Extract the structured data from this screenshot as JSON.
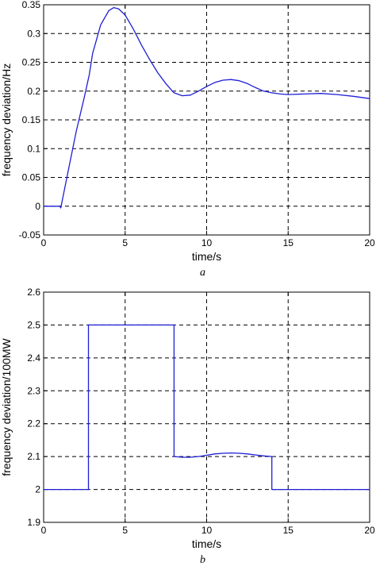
{
  "chart_data": [
    {
      "type": "line",
      "caption": "a",
      "xlabel": "time/s",
      "ylabel": "frequency deviation/Hz",
      "xlim": [
        0,
        20
      ],
      "ylim": [
        -0.05,
        0.35
      ],
      "xticks": [
        "0",
        "5",
        "10",
        "15",
        "20"
      ],
      "yticks": [
        "-0.05",
        "0",
        "0.05",
        "0.1",
        "0.15",
        "0.2",
        "0.25",
        "0.3",
        "0.35"
      ],
      "grid": true,
      "color": "#1f1fd6",
      "series": [
        {
          "x": [
            0,
            1.0,
            1.05,
            1.5,
            2.0,
            2.5,
            2.75,
            2.8,
            3.0,
            3.5,
            4.0,
            4.3,
            4.6,
            5.0,
            5.5,
            6.0,
            6.5,
            7.0,
            7.5,
            7.9,
            8.0,
            8.2,
            8.5,
            9.0,
            9.5,
            10.0,
            10.5,
            11.0,
            11.5,
            12.0,
            12.5,
            13.0,
            13.5,
            14.0,
            14.5,
            15.0,
            16.0,
            17.0,
            18.0,
            19.0,
            20.0
          ],
          "y": [
            0,
            0,
            -0.003,
            0.06,
            0.13,
            0.19,
            0.222,
            0.228,
            0.265,
            0.315,
            0.34,
            0.345,
            0.343,
            0.332,
            0.308,
            0.28,
            0.255,
            0.232,
            0.213,
            0.2,
            0.197,
            0.195,
            0.192,
            0.193,
            0.2,
            0.208,
            0.215,
            0.219,
            0.22,
            0.218,
            0.213,
            0.206,
            0.2,
            0.197,
            0.195,
            0.194,
            0.195,
            0.196,
            0.194,
            0.191,
            0.187
          ]
        }
      ]
    },
    {
      "type": "line",
      "caption": "b",
      "xlabel": "time/s",
      "ylabel": "frequency deviation/100MW",
      "xlim": [
        0,
        20
      ],
      "ylim": [
        1.9,
        2.6
      ],
      "xticks": [
        "0",
        "5",
        "10",
        "15",
        "20"
      ],
      "yticks": [
        "1.9",
        "2",
        "2.1",
        "2.2",
        "2.3",
        "2.4",
        "2.5",
        "2.6"
      ],
      "grid": true,
      "color": "#1f1fd6",
      "series": [
        {
          "x": [
            0,
            2.75,
            2.75,
            8.0,
            8.0,
            8.5,
            9.0,
            9.5,
            10.0,
            10.5,
            11.0,
            11.5,
            12.0,
            12.5,
            13.0,
            13.5,
            14.0,
            14.0,
            20.0
          ],
          "y": [
            2.0,
            2.0,
            2.5,
            2.5,
            2.1,
            2.098,
            2.098,
            2.1,
            2.104,
            2.108,
            2.11,
            2.111,
            2.11,
            2.108,
            2.105,
            2.102,
            2.1,
            2.0,
            2.0
          ]
        }
      ]
    }
  ]
}
